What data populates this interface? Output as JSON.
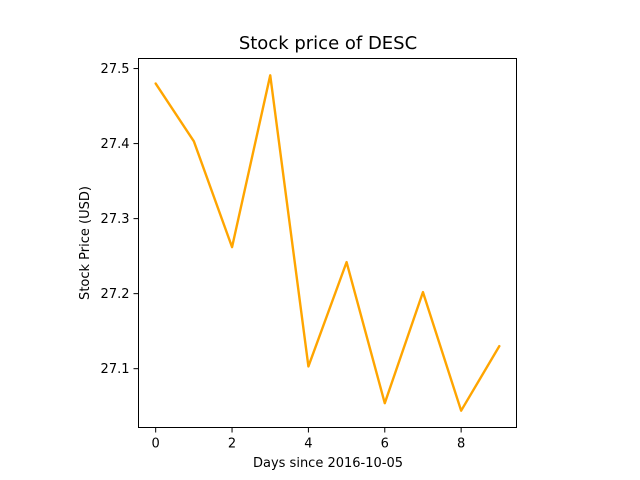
{
  "chart_data": {
    "type": "line",
    "title": "Stock price of DESC",
    "xlabel": "Days since 2016-10-05",
    "ylabel": "Stock Price (USD)",
    "x": [
      0,
      1,
      2,
      3,
      4,
      5,
      6,
      7,
      8,
      9
    ],
    "series": [
      {
        "values": [
          27.48,
          27.403,
          27.262,
          27.491,
          27.103,
          27.242,
          27.054,
          27.202,
          27.044,
          27.13
        ],
        "color": "#ffa500"
      }
    ],
    "xlim": [
      -0.45,
      9.45
    ],
    "ylim": [
      27.0216,
      27.5134
    ],
    "xticks": [
      0,
      2,
      4,
      6,
      8
    ],
    "yticks": [
      27.1,
      27.2,
      27.3,
      27.4,
      27.5
    ],
    "grid": false,
    "legend": "none"
  }
}
